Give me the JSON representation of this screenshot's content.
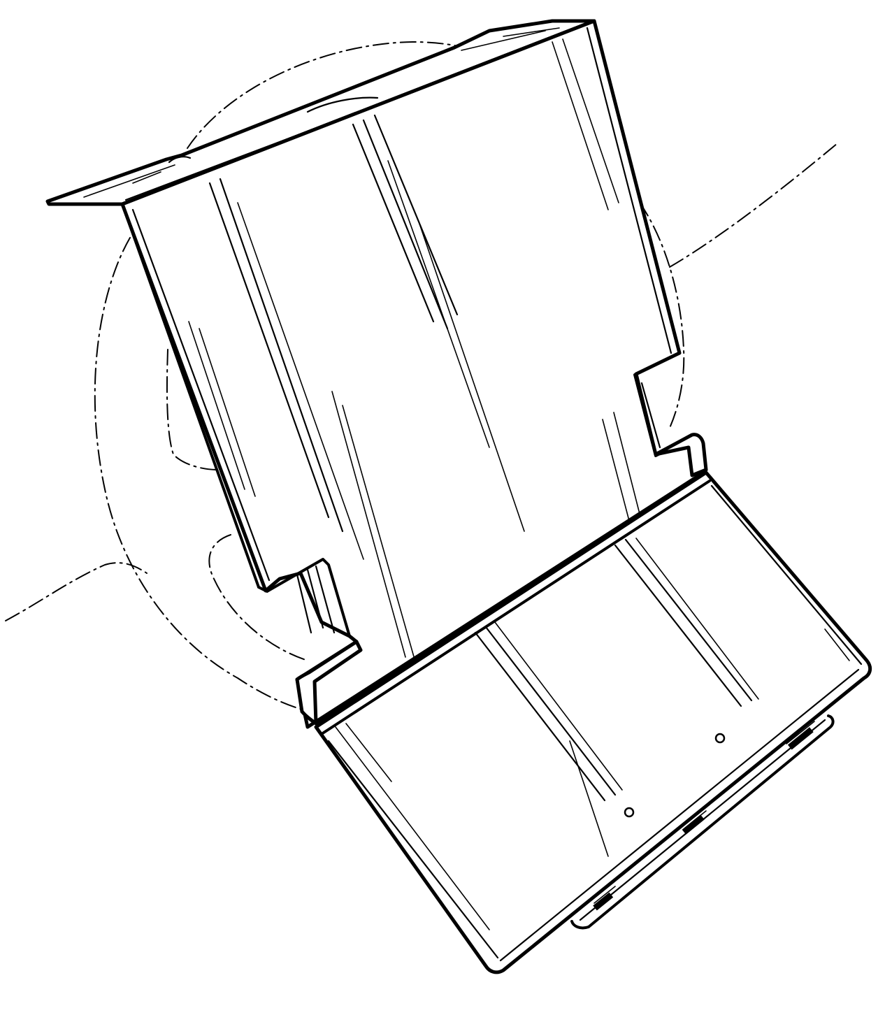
{
  "figure": {
    "style": "patent line drawing",
    "stroke_color": "#000000",
    "background_color": "#ffffff"
  }
}
